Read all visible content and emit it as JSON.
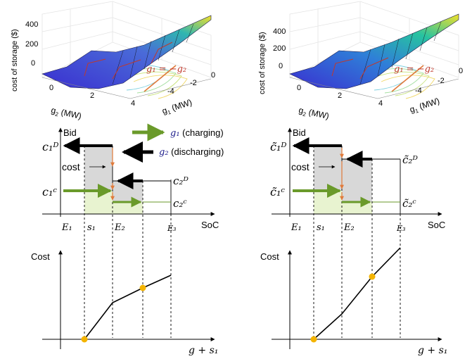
{
  "surface_left": {
    "zlabel": "cost of storage ($)",
    "xlabel": "g",
    "xlabel_sub": "2",
    "xlabel_unit": " (MW)",
    "ylabel": "g",
    "ylabel_sub": "1",
    "ylabel_unit": " (MW)",
    "zticks": [
      "400",
      "200",
      "0"
    ],
    "xticks": [
      "0",
      "2",
      "4"
    ],
    "yticks": [
      "0",
      "-2",
      "-4"
    ],
    "annotation": "g₁ = −g₂"
  },
  "surface_right": {
    "zlabel": "cost of storage ($)",
    "xlabel": "g",
    "xlabel_sub": "2",
    "xlabel_unit": " (MW)",
    "ylabel": "g",
    "ylabel_sub": "1",
    "ylabel_unit": " (MW)",
    "zticks": [
      "400",
      "200",
      "0"
    ],
    "xticks": [
      "0",
      "2",
      "4"
    ],
    "yticks": [
      "0",
      "-2",
      "-4"
    ],
    "annotation": "g₁ = −g₂"
  },
  "legend": {
    "charging_sym": "g₁",
    "charging_text": " (charging)",
    "discharging_sym": "g₂",
    "discharging_text": " (discharging)",
    "charging_color": "#6a9a2a",
    "discharging_color": "#000000"
  },
  "bid_left": {
    "ylabel": "Bid",
    "xlabel": "SoC",
    "cost_label": "cost",
    "c1d": "c₁ᴰ",
    "c1c": "c₁ᶜ",
    "c2d": "c₂ᴰ",
    "c2c": "c₂ᶜ",
    "xticks": [
      "E₁",
      "s₁",
      "E₂",
      "E₃"
    ]
  },
  "bid_right": {
    "ylabel": "Bid",
    "xlabel": "SoC",
    "cost_label": "cost",
    "c1d": "c̃₁ᴰ",
    "c1c": "c̃₁ᶜ",
    "c2d": "c̃₂ᴰ",
    "c2c": "c̃₂ᶜ",
    "xticks": [
      "E₁",
      "s₁",
      "E₂",
      "E₃"
    ]
  },
  "cost_left": {
    "ylabel": "Cost",
    "xlabel": "g + s₁"
  },
  "cost_right": {
    "ylabel": "Cost",
    "xlabel": "g + s₁"
  },
  "colors": {
    "green_arrow": "#6a9a2a",
    "green_fill": "#e8f3d0",
    "gray_fill": "#d8d8d8",
    "orange_arrow": "#e07a3a",
    "dot": "#f4b400",
    "contour_red": "#c0392b"
  }
}
